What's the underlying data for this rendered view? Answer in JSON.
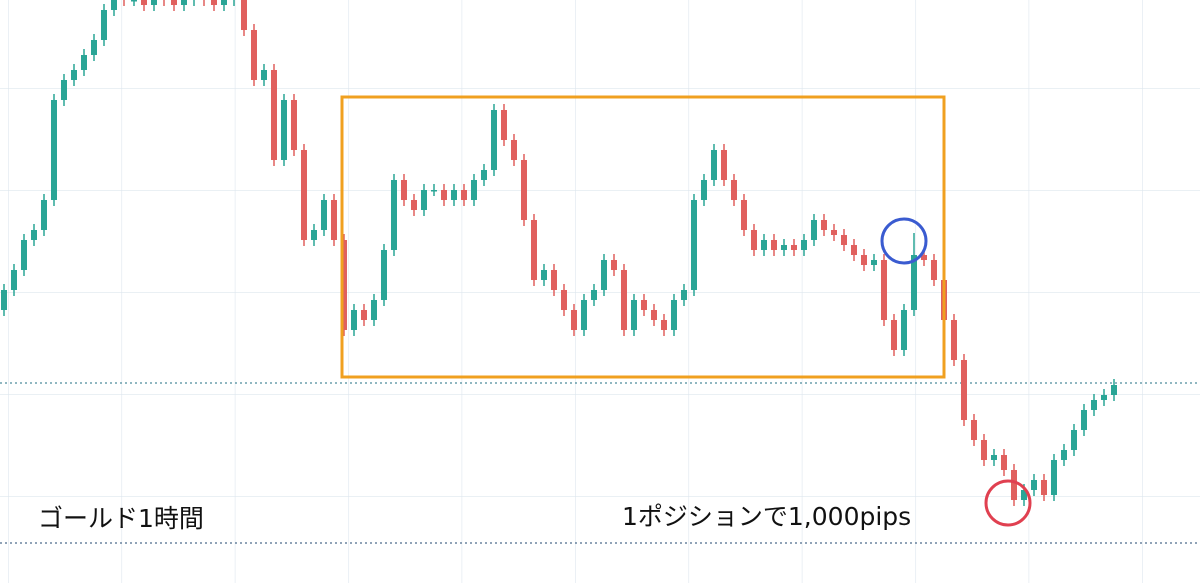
{
  "chart_data": {
    "type": "candlestick",
    "annotations": [
      "ゴールド1時間",
      "1ポジションで1,000pips"
    ],
    "up_color": "#2aa596",
    "down_color": "#e0605e",
    "ylim": [
      0,
      583
    ],
    "open": [
      273,
      293,
      313,
      343,
      353,
      383,
      483,
      503,
      513,
      528,
      543,
      573,
      588,
      583,
      583,
      578,
      588,
      583,
      578,
      583,
      588,
      583,
      578,
      583,
      588,
      553,
      503,
      513,
      423,
      483,
      433,
      343,
      353,
      383,
      343,
      253,
      273,
      263,
      283,
      333,
      403,
      383,
      373,
      393,
      393,
      383,
      393,
      383,
      403,
      413,
      473,
      443,
      423,
      363,
      303,
      313,
      293,
      273,
      253,
      283,
      293,
      323,
      313,
      253,
      283,
      273,
      263,
      253,
      283,
      293,
      383,
      403,
      433,
      403,
      383,
      353,
      333,
      343,
      333,
      338,
      333,
      343,
      363,
      353,
      348,
      338,
      328,
      318,
      323,
      263,
      233,
      273,
      328,
      323,
      303,
      263,
      223,
      163,
      143,
      123,
      128,
      113,
      83,
      93,
      103,
      88,
      123,
      133,
      153,
      173,
      183,
      188
    ],
    "high": [
      299,
      319,
      349,
      359,
      389,
      489,
      509,
      519,
      534,
      549,
      579,
      594,
      594,
      589,
      589,
      594,
      594,
      589,
      589,
      594,
      594,
      589,
      589,
      594,
      594,
      559,
      519,
      519,
      489,
      489,
      439,
      359,
      389,
      389,
      349,
      279,
      279,
      289,
      339,
      409,
      409,
      389,
      399,
      399,
      399,
      399,
      399,
      409,
      419,
      479,
      479,
      449,
      429,
      369,
      319,
      319,
      299,
      279,
      289,
      299,
      329,
      329,
      319,
      289,
      289,
      279,
      269,
      289,
      299,
      389,
      409,
      439,
      439,
      409,
      389,
      359,
      349,
      349,
      344,
      344,
      349,
      369,
      369,
      359,
      354,
      344,
      334,
      329,
      329,
      269,
      279,
      350,
      334,
      329,
      309,
      269,
      229,
      169,
      149,
      134,
      134,
      119,
      99,
      109,
      109,
      129,
      139,
      159,
      179,
      189,
      194,
      204
    ],
    "low": [
      267,
      287,
      307,
      337,
      347,
      377,
      477,
      497,
      507,
      522,
      537,
      567,
      577,
      577,
      572,
      572,
      577,
      572,
      572,
      577,
      577,
      572,
      572,
      577,
      547,
      497,
      497,
      417,
      417,
      427,
      337,
      337,
      347,
      337,
      247,
      247,
      257,
      257,
      277,
      327,
      377,
      367,
      367,
      387,
      377,
      377,
      377,
      377,
      397,
      407,
      437,
      417,
      357,
      297,
      297,
      287,
      267,
      247,
      247,
      277,
      287,
      307,
      247,
      247,
      267,
      257,
      247,
      247,
      277,
      287,
      377,
      397,
      397,
      377,
      347,
      327,
      327,
      327,
      327,
      327,
      327,
      337,
      347,
      342,
      332,
      322,
      312,
      312,
      257,
      227,
      227,
      267,
      317,
      297,
      257,
      217,
      157,
      137,
      117,
      117,
      107,
      77,
      77,
      87,
      82,
      82,
      117,
      127,
      147,
      167,
      177,
      182
    ],
    "close": [
      293,
      313,
      343,
      353,
      383,
      483,
      503,
      513,
      528,
      543,
      573,
      588,
      583,
      583,
      578,
      588,
      583,
      578,
      583,
      588,
      583,
      578,
      583,
      588,
      553,
      503,
      513,
      423,
      483,
      433,
      343,
      353,
      383,
      343,
      253,
      273,
      263,
      283,
      333,
      403,
      383,
      373,
      393,
      393,
      383,
      393,
      383,
      403,
      413,
      473,
      443,
      423,
      363,
      303,
      313,
      293,
      273,
      253,
      283,
      293,
      323,
      313,
      253,
      283,
      273,
      263,
      253,
      283,
      293,
      383,
      403,
      433,
      403,
      383,
      353,
      333,
      343,
      333,
      338,
      333,
      343,
      363,
      353,
      348,
      338,
      328,
      318,
      323,
      263,
      233,
      273,
      328,
      323,
      303,
      263,
      223,
      163,
      143,
      123,
      128,
      113,
      83,
      93,
      103,
      88,
      123,
      133,
      153,
      173,
      183,
      188,
      198
    ]
  }
}
